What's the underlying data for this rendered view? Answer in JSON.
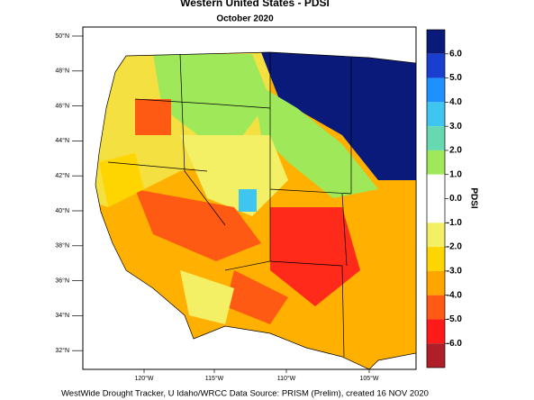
{
  "header": {
    "title": "Western United States - PDSI",
    "subtitle": "October 2020"
  },
  "map": {
    "lat_labels": [
      "50°N",
      "48°N",
      "46°N",
      "44°N",
      "42°N",
      "40°N",
      "38°N",
      "36°N",
      "34°N",
      "32°N"
    ],
    "lon_labels": [
      "120°W",
      "115°W",
      "110°W",
      "105°W"
    ]
  },
  "colorbar": {
    "title": "PDSI",
    "labels": [
      "6.0",
      "5.0",
      "4.0",
      "3.0",
      "2.0",
      "1.0",
      "0.0",
      "-1.0",
      "-2.0",
      "-3.0",
      "-4.0",
      "-5.0",
      "-6.0"
    ],
    "colors": [
      "#0a1a7a",
      "#1a3fd0",
      "#1e90ff",
      "#3fc6f0",
      "#66d9b0",
      "#9ee85a",
      "#ffffff",
      "#ffffff",
      "#f4f066",
      "#ffd500",
      "#ffa500",
      "#ff5a14",
      "#ff1a1a",
      "#b01e28"
    ]
  },
  "footer": "WestWide Drought Tracker, U Idaho/WRCC Data Source: PRISM (Prelim), created 16 NOV 2020"
}
